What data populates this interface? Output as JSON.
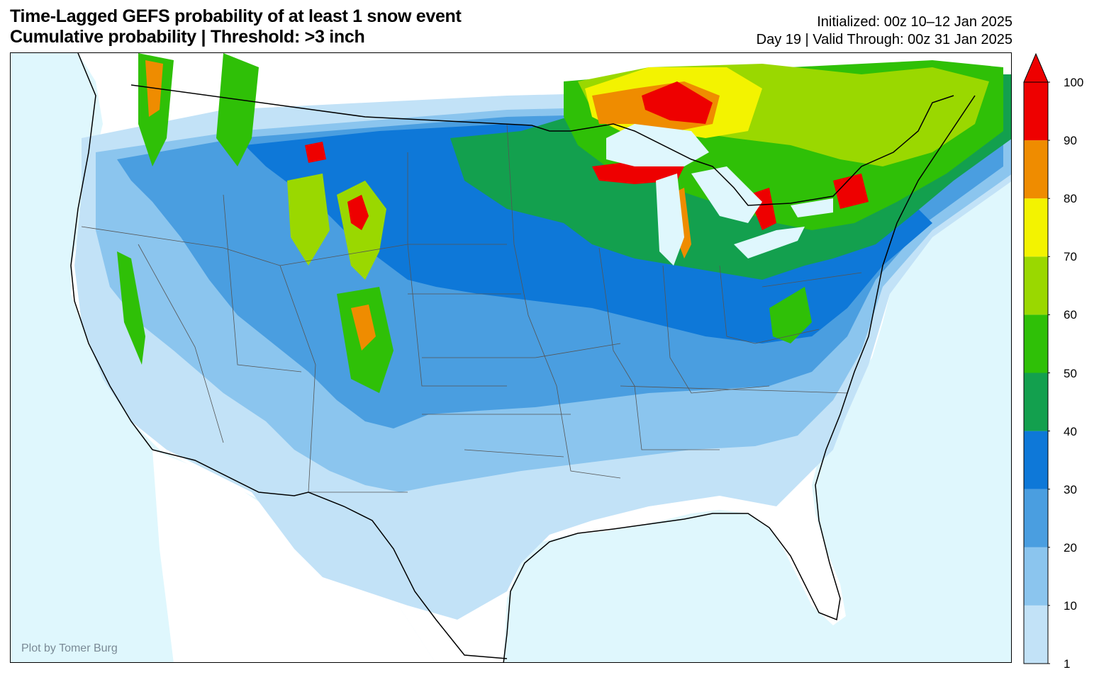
{
  "title": {
    "line1": "Time-Lagged GEFS probability of at least 1 snow event",
    "line2": "Cumulative probability | Threshold: >3 inch"
  },
  "info": {
    "line1": "Initialized: 00z 10–12 Jan 2025",
    "line2": "Day 19 | Valid Through: 00z 31 Jan 2025"
  },
  "credit": "Plot by Tomer Burg",
  "colorbar": {
    "labels": [
      "1",
      "10",
      "20",
      "30",
      "40",
      "50",
      "60",
      "70",
      "80",
      "90",
      "100"
    ],
    "colors": [
      "#c2e2f7",
      "#8bc5ee",
      "#4a9ee0",
      "#0e78d8",
      "#13a04e",
      "#2fc007",
      "#9ad800",
      "#f3f300",
      "#ef8c00",
      "#ee0000"
    ],
    "extend": "max"
  },
  "map": {
    "land_color": "#ffffff",
    "ocean_color": "#dff7fd"
  }
}
